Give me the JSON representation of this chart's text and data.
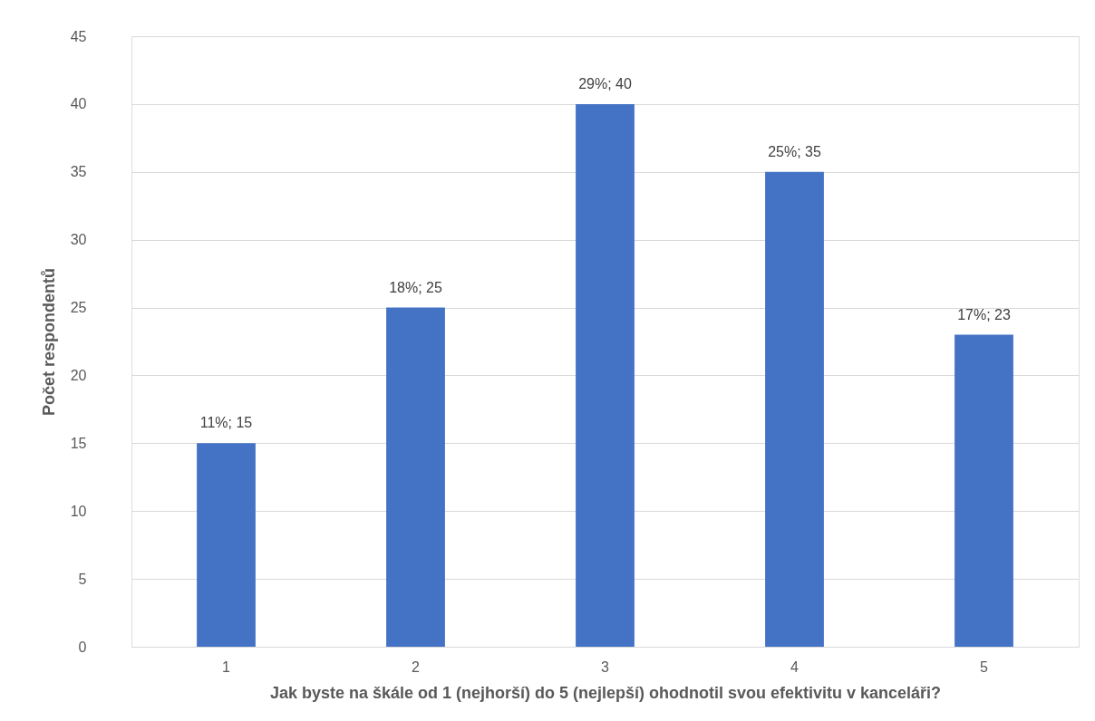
{
  "chart_data": {
    "type": "bar",
    "xlabel": "Jak byste na škále od 1 (nejhorší) do 5 (nejlepší) ohodnotil svou efektivitu v kanceláři?",
    "ylabel": "Počet respondentů",
    "categories": [
      "1",
      "2",
      "3",
      "4",
      "5"
    ],
    "values": [
      15,
      25,
      40,
      35,
      23
    ],
    "value_labels": [
      "11%; 15",
      "18%; 25",
      "29%; 40",
      "25%; 35",
      "17%; 23"
    ],
    "color": "#4472c4",
    "ylim": [
      0,
      45
    ],
    "yticks": [
      0,
      5,
      10,
      15,
      20,
      25,
      30,
      35,
      40,
      45
    ],
    "grid": "y"
  }
}
